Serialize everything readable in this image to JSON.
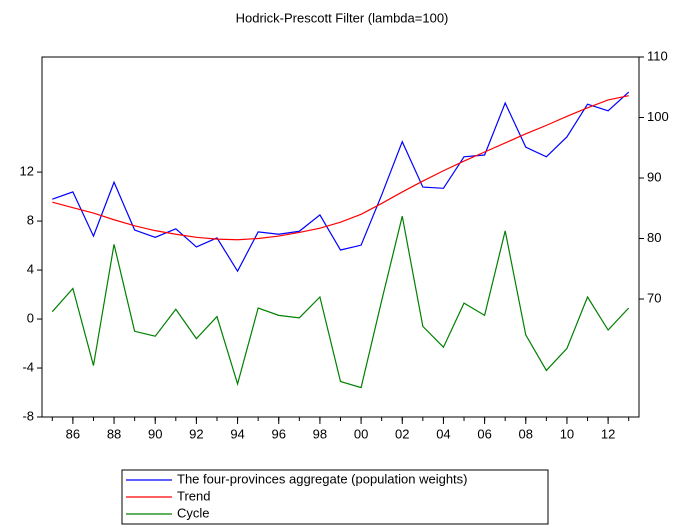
{
  "chart_data": {
    "type": "line",
    "title": "Hodrick-Prescott Filter (lambda=100)",
    "x": [
      1985,
      1986,
      1987,
      1988,
      1989,
      1990,
      1991,
      1992,
      1993,
      1994,
      1995,
      1996,
      1997,
      1998,
      1999,
      2000,
      2001,
      2002,
      2003,
      2004,
      2005,
      2006,
      2007,
      2008,
      2009,
      2010,
      2011,
      2012,
      2013
    ],
    "xlim": [
      1984.5,
      2013.5
    ],
    "xticks": [
      {
        "value": 1986,
        "label": "86"
      },
      {
        "value": 1988,
        "label": "88"
      },
      {
        "value": 1990,
        "label": "90"
      },
      {
        "value": 1992,
        "label": "92"
      },
      {
        "value": 1994,
        "label": "94"
      },
      {
        "value": 1996,
        "label": "96"
      },
      {
        "value": 1998,
        "label": "98"
      },
      {
        "value": 2000,
        "label": "00"
      },
      {
        "value": 2002,
        "label": "02"
      },
      {
        "value": 2004,
        "label": "04"
      },
      {
        "value": 2006,
        "label": "06"
      },
      {
        "value": 2008,
        "label": "08"
      },
      {
        "value": 2010,
        "label": "10"
      },
      {
        "value": 2012,
        "label": "12"
      }
    ],
    "ylim": [
      -8,
      21.4
    ],
    "yticks": [
      -8,
      -4,
      0,
      4,
      8,
      12
    ],
    "y2lim": [
      50.5,
      110
    ],
    "y2ticks": [
      70,
      80,
      90,
      100,
      110
    ],
    "legend": "bottom",
    "series": [
      {
        "name": "The four-provinces aggregate (population weights)",
        "color": "#0000ff",
        "axis": "y2",
        "values": [
          86.5,
          87.7,
          80.4,
          89.3,
          81.4,
          80.2,
          81.6,
          78.6,
          80.1,
          74.6,
          81.1,
          80.7,
          81.2,
          83.9,
          78.1,
          78.9,
          87.2,
          96.0,
          88.5,
          88.3,
          93.5,
          93.8,
          102.4,
          95.1,
          93.5,
          96.8,
          102.2,
          101.1,
          104.2
        ]
      },
      {
        "name": "Trend",
        "color": "#ff0000",
        "axis": "y2",
        "values": [
          86.0,
          85.1,
          84.2,
          83.1,
          82.1,
          81.3,
          80.7,
          80.2,
          79.9,
          79.8,
          80.0,
          80.4,
          81.0,
          81.7,
          82.7,
          84.0,
          85.8,
          87.7,
          89.5,
          91.2,
          92.8,
          94.3,
          95.8,
          97.3,
          98.7,
          100.2,
          101.6,
          102.9,
          103.6
        ]
      },
      {
        "name": "Cycle",
        "color": "#008000",
        "values": [
          0.6,
          2.5,
          -3.8,
          6.1,
          -1.0,
          -1.4,
          0.8,
          -1.6,
          0.2,
          -5.3,
          0.9,
          0.3,
          0.1,
          1.8,
          -5.1,
          -5.6,
          1.5,
          8.4,
          -0.6,
          -2.3,
          1.3,
          0.3,
          7.2,
          -1.3,
          -4.2,
          -2.4,
          1.8,
          -0.9,
          0.9
        ]
      }
    ]
  }
}
